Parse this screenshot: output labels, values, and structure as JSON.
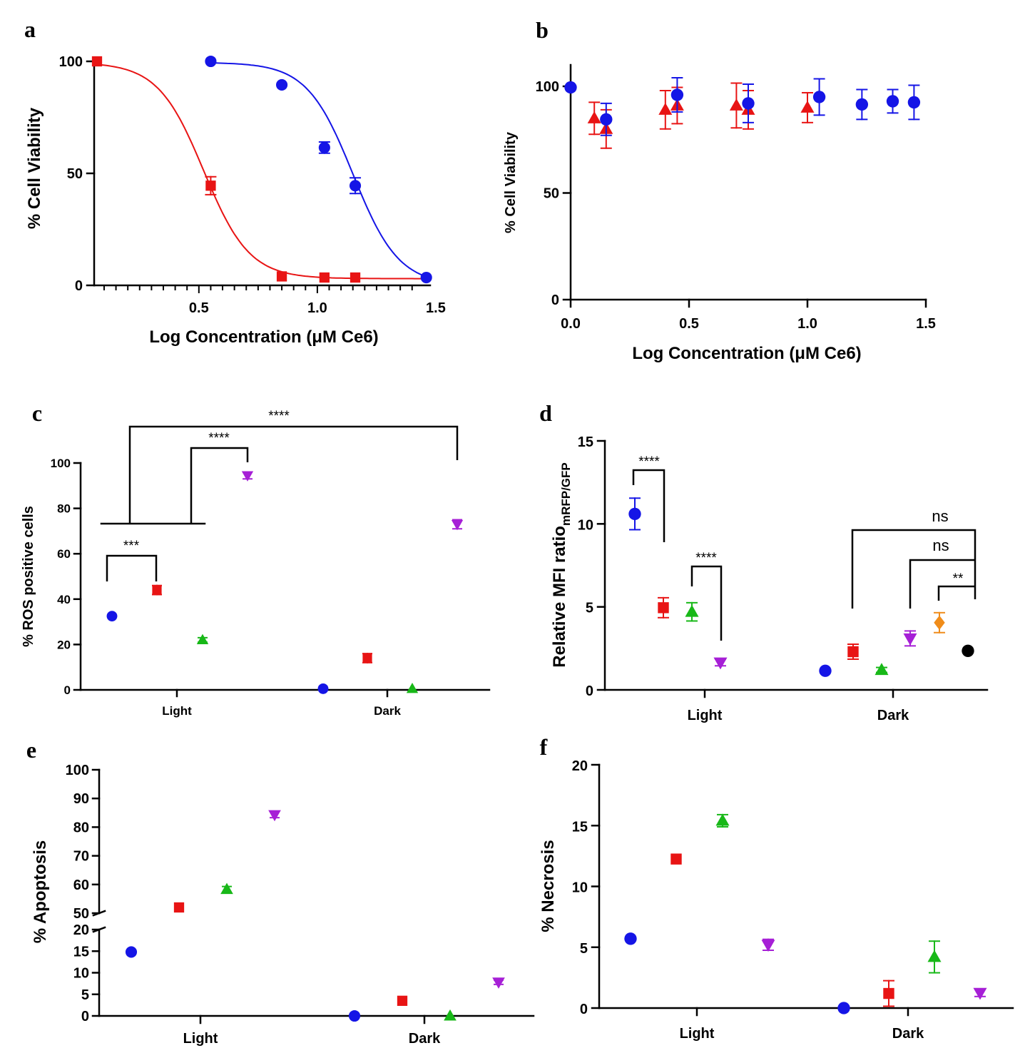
{
  "colors": {
    "blue": "#1515e6",
    "red": "#e81414",
    "green": "#18b818",
    "purple": "#a61fd6",
    "orange": "#f08c1a",
    "black": "#000000"
  },
  "chart_data": [
    {
      "panel": "a",
      "type": "scatter",
      "xlabel": "Log Concentration (μM Ce6)",
      "ylabel": "% Cell Viability",
      "xlim": [
        0.05,
        1.5
      ],
      "ylim": [
        0,
        100
      ],
      "xticks": [
        "0.5",
        "1.0",
        "1.5"
      ],
      "yticks": [
        "0",
        "50",
        "100"
      ],
      "fit": "sigmoidal dose-response curves",
      "series": [
        {
          "name": "red",
          "color": "red",
          "marker": "square",
          "x": [
            0.07,
            0.55,
            0.85,
            1.03,
            1.16
          ],
          "y": [
            100,
            44.5,
            4,
            3.5,
            3.5
          ],
          "err": [
            0,
            4,
            0,
            0,
            0
          ],
          "curve": {
            "top": 99.5,
            "bottom": 3,
            "logIC50": 0.52,
            "hill": 4.5
          }
        },
        {
          "name": "blue",
          "color": "blue",
          "marker": "circle",
          "x": [
            0.55,
            0.85,
            1.03,
            1.16,
            1.46
          ],
          "y": [
            100,
            89.5,
            61.5,
            44.5,
            3.5
          ],
          "err": [
            0,
            0,
            2.5,
            3.5,
            0
          ],
          "curve": {
            "top": 99.5,
            "bottom": 0,
            "logIC50": 1.15,
            "hill": 4.5
          }
        }
      ]
    },
    {
      "panel": "b",
      "type": "scatter",
      "xlabel": "Log Concentration (μM Ce6)",
      "ylabel": "% Cell Viability",
      "xlim": [
        0,
        1.5
      ],
      "ylim": [
        0,
        110
      ],
      "xticks": [
        "0.0",
        "0.5",
        "1.0",
        "1.5"
      ],
      "yticks": [
        "0",
        "50",
        "100"
      ],
      "series": [
        {
          "name": "red",
          "color": "red",
          "marker": "triangle",
          "x": [
            0.1,
            0.15,
            0.4,
            0.45,
            0.7,
            0.75,
            1.0
          ],
          "y": [
            85,
            80,
            89,
            91,
            91,
            89,
            90
          ],
          "err": [
            7.5,
            9,
            9,
            8.5,
            10.5,
            9,
            7
          ]
        },
        {
          "name": "blue",
          "color": "blue",
          "marker": "circle",
          "x": [
            0,
            0.15,
            0.45,
            1.05,
            0.75,
            1.23,
            1.36,
            1.45
          ],
          "y": [
            99.5,
            84.5,
            96,
            95,
            92,
            91.5,
            93,
            92.5
          ],
          "err": [
            0,
            7.5,
            8,
            8.5,
            9,
            7,
            5.5,
            8
          ]
        }
      ]
    },
    {
      "panel": "c",
      "type": "scatter",
      "ylabel": "% ROS positive cells",
      "ylim": [
        0,
        100
      ],
      "yticks": [
        "0",
        "20",
        "40",
        "60",
        "80",
        "100"
      ],
      "categories": [
        "Light",
        "Dark"
      ],
      "points": [
        {
          "group": "Light",
          "color": "blue",
          "marker": "circle",
          "y": 32.5,
          "err": 0
        },
        {
          "group": "Light",
          "color": "red",
          "marker": "square",
          "y": 44,
          "err": 2
        },
        {
          "group": "Light",
          "color": "green",
          "marker": "triangle",
          "y": 22,
          "err": 1
        },
        {
          "group": "Light",
          "color": "purple",
          "marker": "triangle-down",
          "y": 94.5,
          "err": 1.5
        },
        {
          "group": "Dark",
          "color": "blue",
          "marker": "circle",
          "y": 0.5,
          "err": 0
        },
        {
          "group": "Dark",
          "color": "red",
          "marker": "square",
          "y": 14,
          "err": 2
        },
        {
          "group": "Dark",
          "color": "green",
          "marker": "triangle",
          "y": 0.5,
          "err": 0
        },
        {
          "group": "Dark",
          "color": "purple",
          "marker": "triangle-down",
          "y": 73,
          "err": 2
        }
      ],
      "annotations": [
        "***",
        "****",
        "****"
      ]
    },
    {
      "panel": "d",
      "type": "scatter",
      "ylabel": "Relative MFI ratio",
      "ylabel_sub": "mRFP/GFP",
      "ylim": [
        0,
        15
      ],
      "yticks": [
        "0",
        "5",
        "10",
        "15"
      ],
      "categories": [
        "Light",
        "Dark"
      ],
      "points": [
        {
          "group": "Light",
          "color": "blue",
          "marker": "circle",
          "y": 10.6,
          "err": 0.95
        },
        {
          "group": "Light",
          "color": "red",
          "marker": "square",
          "y": 4.95,
          "err": 0.6
        },
        {
          "group": "Light",
          "color": "green",
          "marker": "triangle",
          "y": 4.7,
          "err": 0.55
        },
        {
          "group": "Light",
          "color": "purple",
          "marker": "triangle-down",
          "y": 1.65,
          "err": 0.2
        },
        {
          "group": "Dark",
          "color": "blue",
          "marker": "circle",
          "y": 1.15,
          "err": 0
        },
        {
          "group": "Dark",
          "color": "red",
          "marker": "square",
          "y": 2.3,
          "err": 0.45
        },
        {
          "group": "Dark",
          "color": "green",
          "marker": "triangle",
          "y": 1.2,
          "err": 0.15
        },
        {
          "group": "Dark",
          "color": "purple",
          "marker": "triangle-down",
          "y": 3.1,
          "err": 0.45
        },
        {
          "group": "Dark",
          "color": "orange",
          "marker": "diamond",
          "y": 4.05,
          "err": 0.6
        },
        {
          "group": "Dark",
          "color": "black",
          "marker": "circle",
          "y": 2.35,
          "err": 0
        }
      ],
      "annotations": [
        "****",
        "****",
        "ns",
        "ns",
        "**"
      ]
    },
    {
      "panel": "e",
      "type": "scatter",
      "ylabel": "% Apoptosis",
      "axis_break": true,
      "ylim_lower": [
        0,
        20
      ],
      "ylim_upper": [
        50,
        100
      ],
      "yticks": [
        "0",
        "5",
        "10",
        "15",
        "20",
        "50",
        "60",
        "70",
        "80",
        "90",
        "100"
      ],
      "categories": [
        "Light",
        "Dark"
      ],
      "points": [
        {
          "group": "Light",
          "color": "blue",
          "marker": "circle",
          "y": 14.8,
          "err": 0
        },
        {
          "group": "Light",
          "color": "red",
          "marker": "square",
          "y": 52,
          "err": 0
        },
        {
          "group": "Light",
          "color": "green",
          "marker": "triangle",
          "y": 58.3,
          "err": 1
        },
        {
          "group": "Light",
          "color": "purple",
          "marker": "triangle-down",
          "y": 84.3,
          "err": 1
        },
        {
          "group": "Dark",
          "color": "blue",
          "marker": "circle",
          "y": 0,
          "err": 0
        },
        {
          "group": "Dark",
          "color": "red",
          "marker": "square",
          "y": 3.5,
          "err": 0
        },
        {
          "group": "Dark",
          "color": "green",
          "marker": "triangle",
          "y": 0,
          "err": 0
        },
        {
          "group": "Dark",
          "color": "purple",
          "marker": "triangle-down",
          "y": 7.8,
          "err": 0.5
        }
      ]
    },
    {
      "panel": "f",
      "type": "scatter",
      "ylabel": "% Necrosis",
      "ylim": [
        0,
        20
      ],
      "yticks": [
        "0",
        "5",
        "10",
        "15",
        "20"
      ],
      "categories": [
        "Light",
        "Dark"
      ],
      "points": [
        {
          "group": "Light",
          "color": "blue",
          "marker": "circle",
          "y": 5.7,
          "err": 0
        },
        {
          "group": "Light",
          "color": "red",
          "marker": "square",
          "y": 12.25,
          "err": 0
        },
        {
          "group": "Light",
          "color": "green",
          "marker": "triangle",
          "y": 15.4,
          "err": 0.5
        },
        {
          "group": "Light",
          "color": "purple",
          "marker": "triangle-down",
          "y": 5.2,
          "err": 0.45
        },
        {
          "group": "Dark",
          "color": "blue",
          "marker": "circle",
          "y": 0,
          "err": 0
        },
        {
          "group": "Dark",
          "color": "red",
          "marker": "square",
          "y": 1.2,
          "err": 1.05
        },
        {
          "group": "Dark",
          "color": "green",
          "marker": "triangle",
          "y": 4.2,
          "err": 1.3
        },
        {
          "group": "Dark",
          "color": "purple",
          "marker": "triangle-down",
          "y": 1.25,
          "err": 0.3
        }
      ]
    }
  ]
}
